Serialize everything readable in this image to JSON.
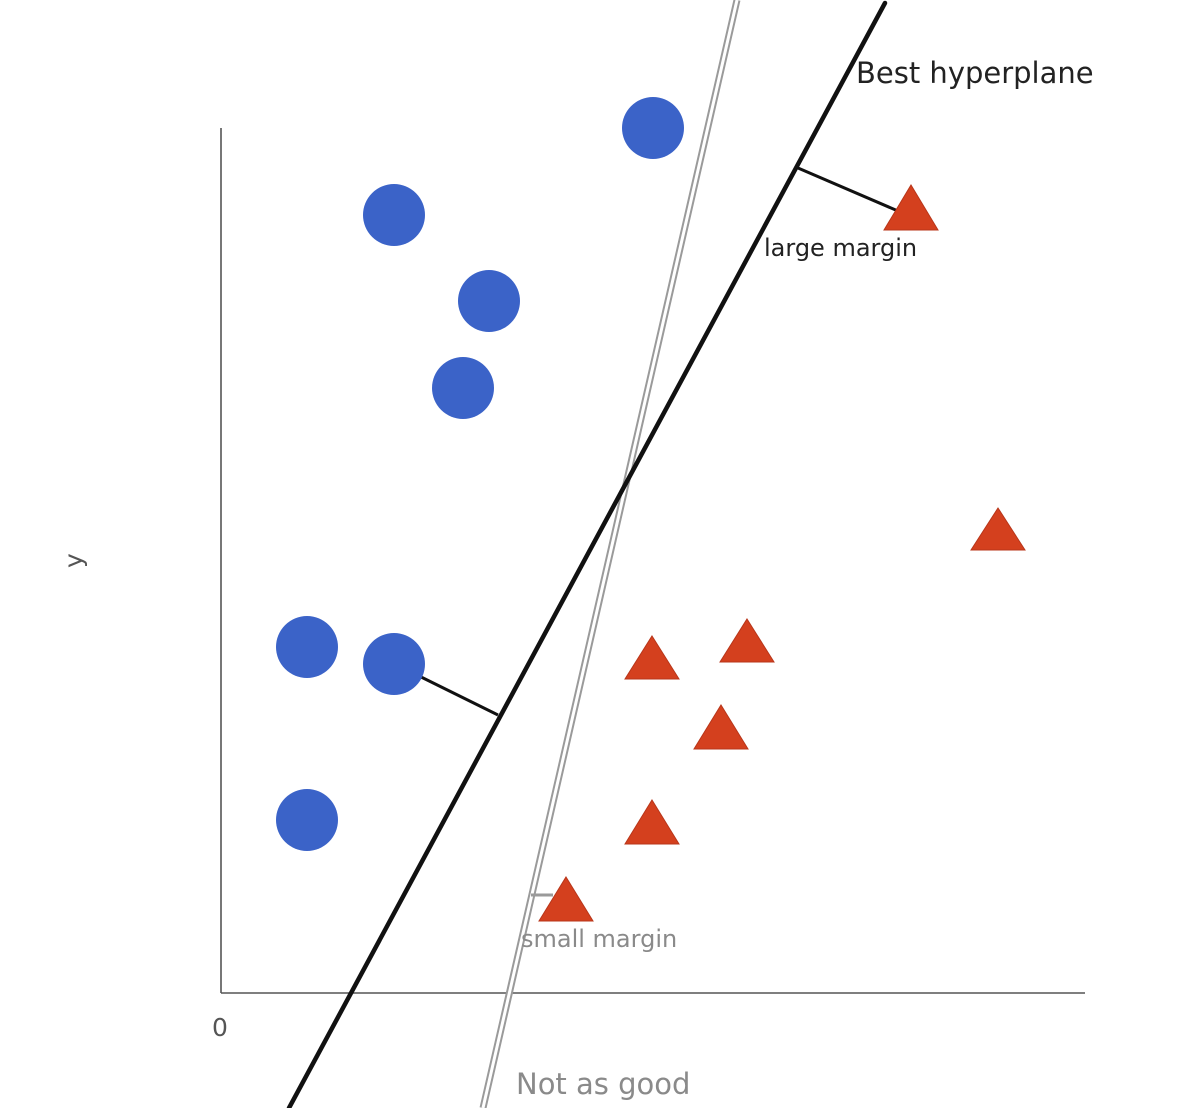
{
  "labels": {
    "best_hyperplane": "Best hyperplane",
    "large_margin": "large margin",
    "small_margin": "small margin",
    "not_as_good": "Not as good",
    "y_axis": "y",
    "origin": "0"
  },
  "colors": {
    "class_a": "#3b63c8",
    "class_b": "#d4401e",
    "best_line": "#111111",
    "alt_line_outer": "#9a9a9a",
    "alt_line_inner": "#ffffff",
    "axis": "#555555"
  }
}
